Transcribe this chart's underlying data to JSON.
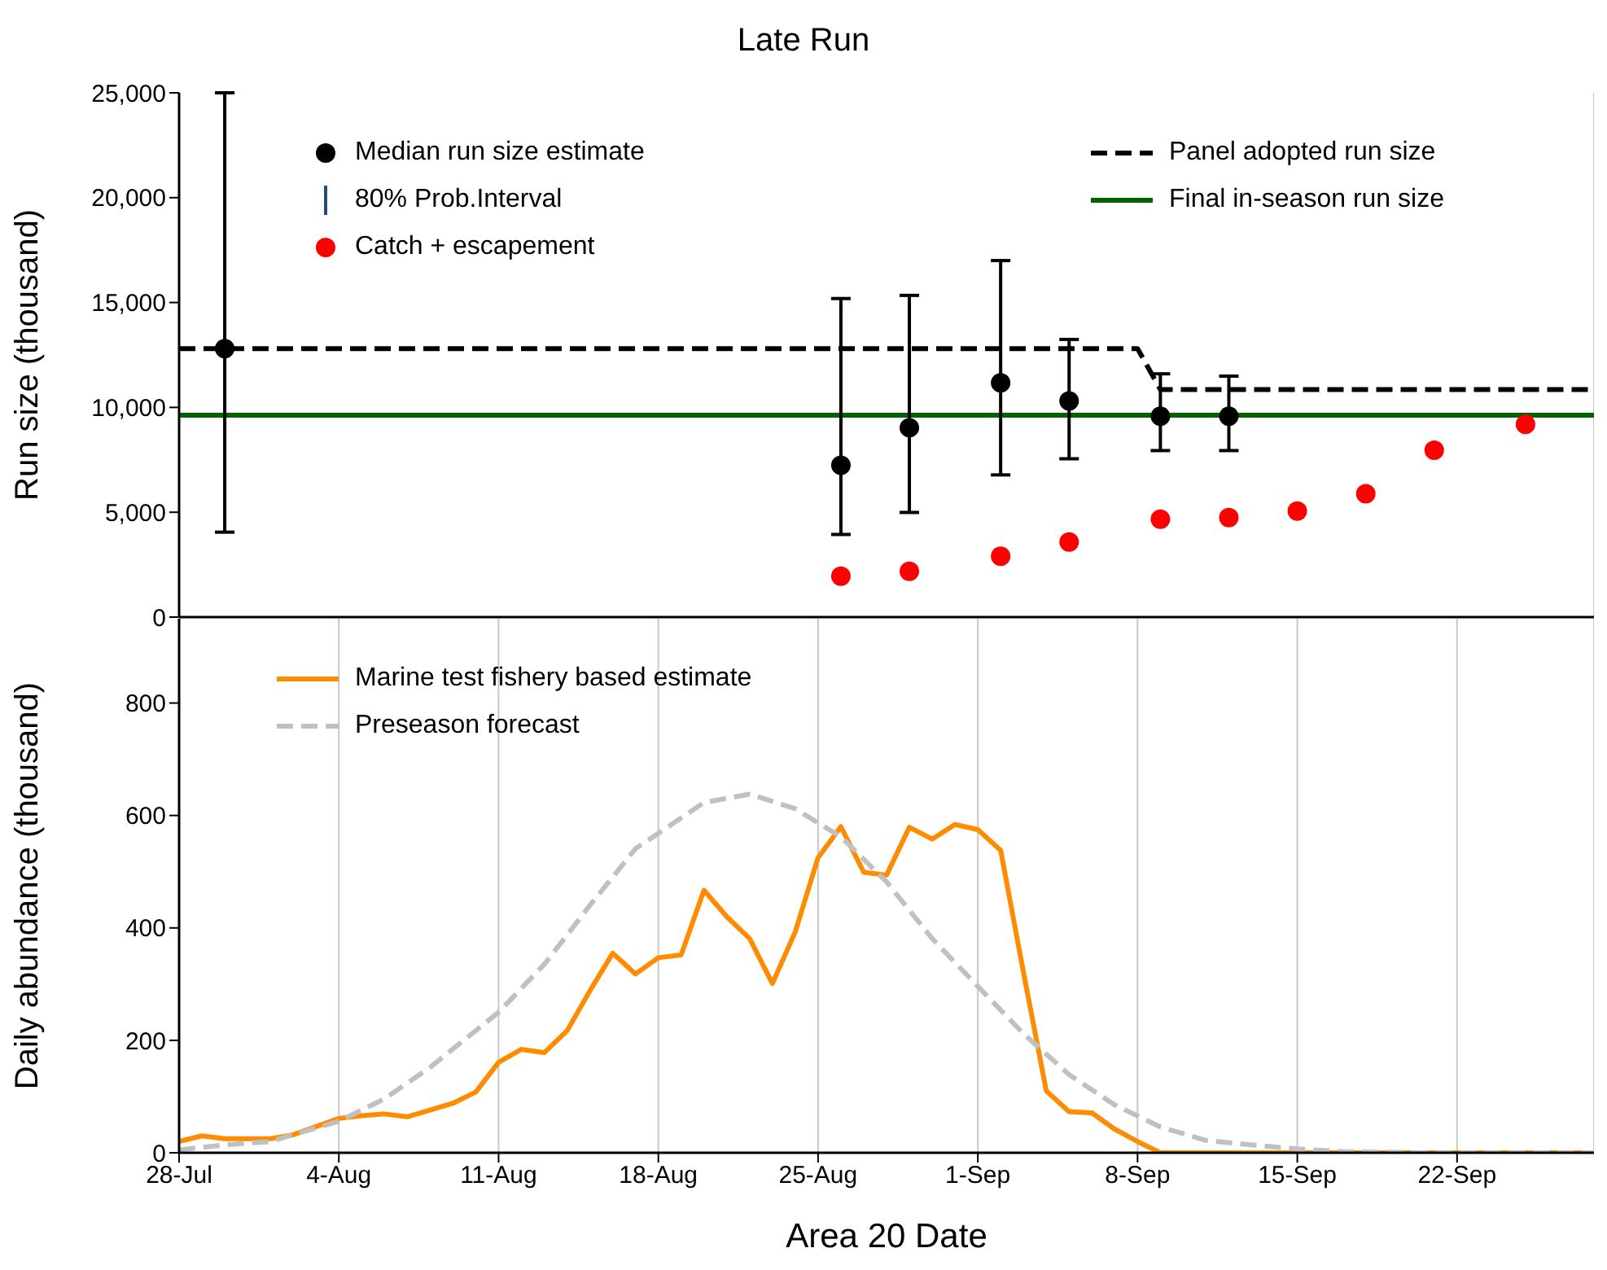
{
  "chart_data": [
    {
      "type": "scatter",
      "title": "Late Run",
      "ylabel": "Run size (thousand)",
      "xlim": [
        "--07-28",
        "--09-28"
      ],
      "xticks": [
        {
          "value": "--07-28",
          "label": "28-Jul"
        },
        {
          "value": "--08-04",
          "label": "4-Aug"
        },
        {
          "value": "--08-11",
          "label": "11-Aug"
        },
        {
          "value": "--08-18",
          "label": "18-Aug"
        },
        {
          "value": "--08-25",
          "label": "25-Aug"
        },
        {
          "value": "--09-01",
          "label": "1-Sep"
        },
        {
          "value": "--09-08",
          "label": "8-Sep"
        },
        {
          "value": "--09-15",
          "label": "15-Sep"
        },
        {
          "value": "--09-22",
          "label": "22-Sep"
        }
      ],
      "ylim": [
        0,
        25000
      ],
      "yticks": [
        {
          "value": 0,
          "label": "0"
        },
        {
          "value": 5000,
          "label": "5,000"
        },
        {
          "value": 10000,
          "label": "10,000"
        },
        {
          "value": 15000,
          "label": "15,000"
        },
        {
          "value": 20000,
          "label": "20,000"
        },
        {
          "value": 25000,
          "label": "25,000"
        }
      ],
      "tick_labels": "y",
      "grid": "x",
      "legend": "top",
      "marker": "circle",
      "annotations": [
        "80% Prob.Interval"
      ],
      "series": [
        {
          "name": "Median run size estimate",
          "color": "#000000",
          "x": [
            "--07-30",
            "--08-26",
            "--08-29",
            "--09-02",
            "--09-05",
            "--09-09",
            "--09-12"
          ],
          "values": [
            12800,
            7240,
            9030,
            11170,
            10310,
            9580,
            9580
          ],
          "errors": [
            [
              4050,
              25000
            ],
            [
              3940,
              15190
            ],
            [
              4990,
              15340
            ],
            [
              6780,
              17000
            ],
            [
              7550,
              13240
            ],
            [
              7940,
              11600
            ],
            [
              7940,
              11490
            ]
          ]
        },
        {
          "name": "Catch + escapement",
          "color": "#ff0000",
          "x": [
            "--08-26",
            "--08-29",
            "--09-02",
            "--09-05",
            "--09-09",
            "--09-12",
            "--09-15",
            "--09-18",
            "--09-21",
            "--09-25"
          ],
          "values": [
            1950,
            2180,
            2900,
            3580,
            4670,
            4750,
            5060,
            5880,
            7960,
            9190
          ]
        },
        {
          "type": "line",
          "name": "Panel adopted run size",
          "color": "#000000",
          "line_style": "dashed",
          "marker": "none",
          "x": [
            "--07-28",
            "--09-08",
            "--09-09",
            "--09-28"
          ],
          "values": [
            12800,
            12800,
            10850,
            10850
          ]
        },
        {
          "type": "line",
          "name": "Final in-season run size",
          "color": "#006400",
          "line_style": "solid",
          "marker": "none",
          "x": [
            "--07-28",
            "--09-28"
          ],
          "values": [
            9630,
            9630
          ]
        }
      ]
    },
    {
      "type": "line",
      "xlabel": "Area 20 Date",
      "ylabel": "Daily abundance (thousand)",
      "xlim": [
        "--07-28",
        "--09-28"
      ],
      "xticks": [
        {
          "value": "--07-28",
          "label": "28-Jul"
        },
        {
          "value": "--08-04",
          "label": "4-Aug"
        },
        {
          "value": "--08-11",
          "label": "11-Aug"
        },
        {
          "value": "--08-18",
          "label": "18-Aug"
        },
        {
          "value": "--08-25",
          "label": "25-Aug"
        },
        {
          "value": "--09-01",
          "label": "1-Sep"
        },
        {
          "value": "--09-08",
          "label": "8-Sep"
        },
        {
          "value": "--09-15",
          "label": "15-Sep"
        },
        {
          "value": "--09-22",
          "label": "22-Sep"
        }
      ],
      "ylim": [
        0,
        950
      ],
      "yticks": [
        0,
        200,
        400,
        600,
        800
      ],
      "grid": "x",
      "legend": "top left",
      "marker": "none",
      "series": [
        {
          "name": "Marine test fishery based estimate",
          "color": "#ff8c00",
          "line_style": "solid",
          "x": [
            "--07-28",
            "--07-29",
            "--07-30",
            "--08-01",
            "--08-02",
            "--08-04",
            "--08-05",
            "--08-06",
            "--08-07",
            "--08-09",
            "--08-10",
            "--08-11",
            "--08-12",
            "--08-13",
            "--08-14",
            "--08-15",
            "--08-16",
            "--08-17",
            "--08-18",
            "--08-19",
            "--08-20",
            "--08-21",
            "--08-22",
            "--08-23",
            "--08-24",
            "--08-25",
            "--08-26",
            "--08-27",
            "--08-28",
            "--08-29",
            "--08-30",
            "--08-31",
            "--09-01",
            "--09-02",
            "--09-03",
            "--09-04",
            "--09-05",
            "--09-06",
            "--09-07",
            "--09-08",
            "--09-09",
            "--09-28"
          ],
          "values": [
            20,
            30,
            25,
            25,
            32,
            61,
            66,
            69,
            64,
            88,
            108,
            161,
            184,
            178,
            217,
            288,
            355,
            318,
            347,
            352,
            467,
            420,
            381,
            301,
            393,
            525,
            580,
            499,
            494,
            579,
            558,
            584,
            575,
            538,
            321,
            110,
            73,
            71,
            42,
            20,
            0,
            0
          ]
        },
        {
          "name": "Preseason forecast",
          "color": "#c0c0c0",
          "line_style": "dashed",
          "x": [
            "--07-28",
            "--07-30",
            "--08-01",
            "--08-04",
            "--08-06",
            "--08-08",
            "--08-11",
            "--08-13",
            "--08-15",
            "--08-17",
            "--08-20",
            "--08-22",
            "--08-24",
            "--08-26",
            "--08-28",
            "--08-30",
            "--09-01",
            "--09-03",
            "--09-05",
            "--09-07",
            "--09-09",
            "--09-11",
            "--09-13",
            "--09-15",
            "--09-17",
            "--09-21",
            "--09-28"
          ],
          "values": [
            5,
            14,
            20,
            56,
            96,
            152,
            250,
            335,
            440,
            541,
            623,
            638,
            612,
            562,
            482,
            381,
            296,
            212,
            139,
            85,
            46,
            22,
            14,
            7,
            2,
            0,
            0
          ]
        }
      ]
    }
  ]
}
